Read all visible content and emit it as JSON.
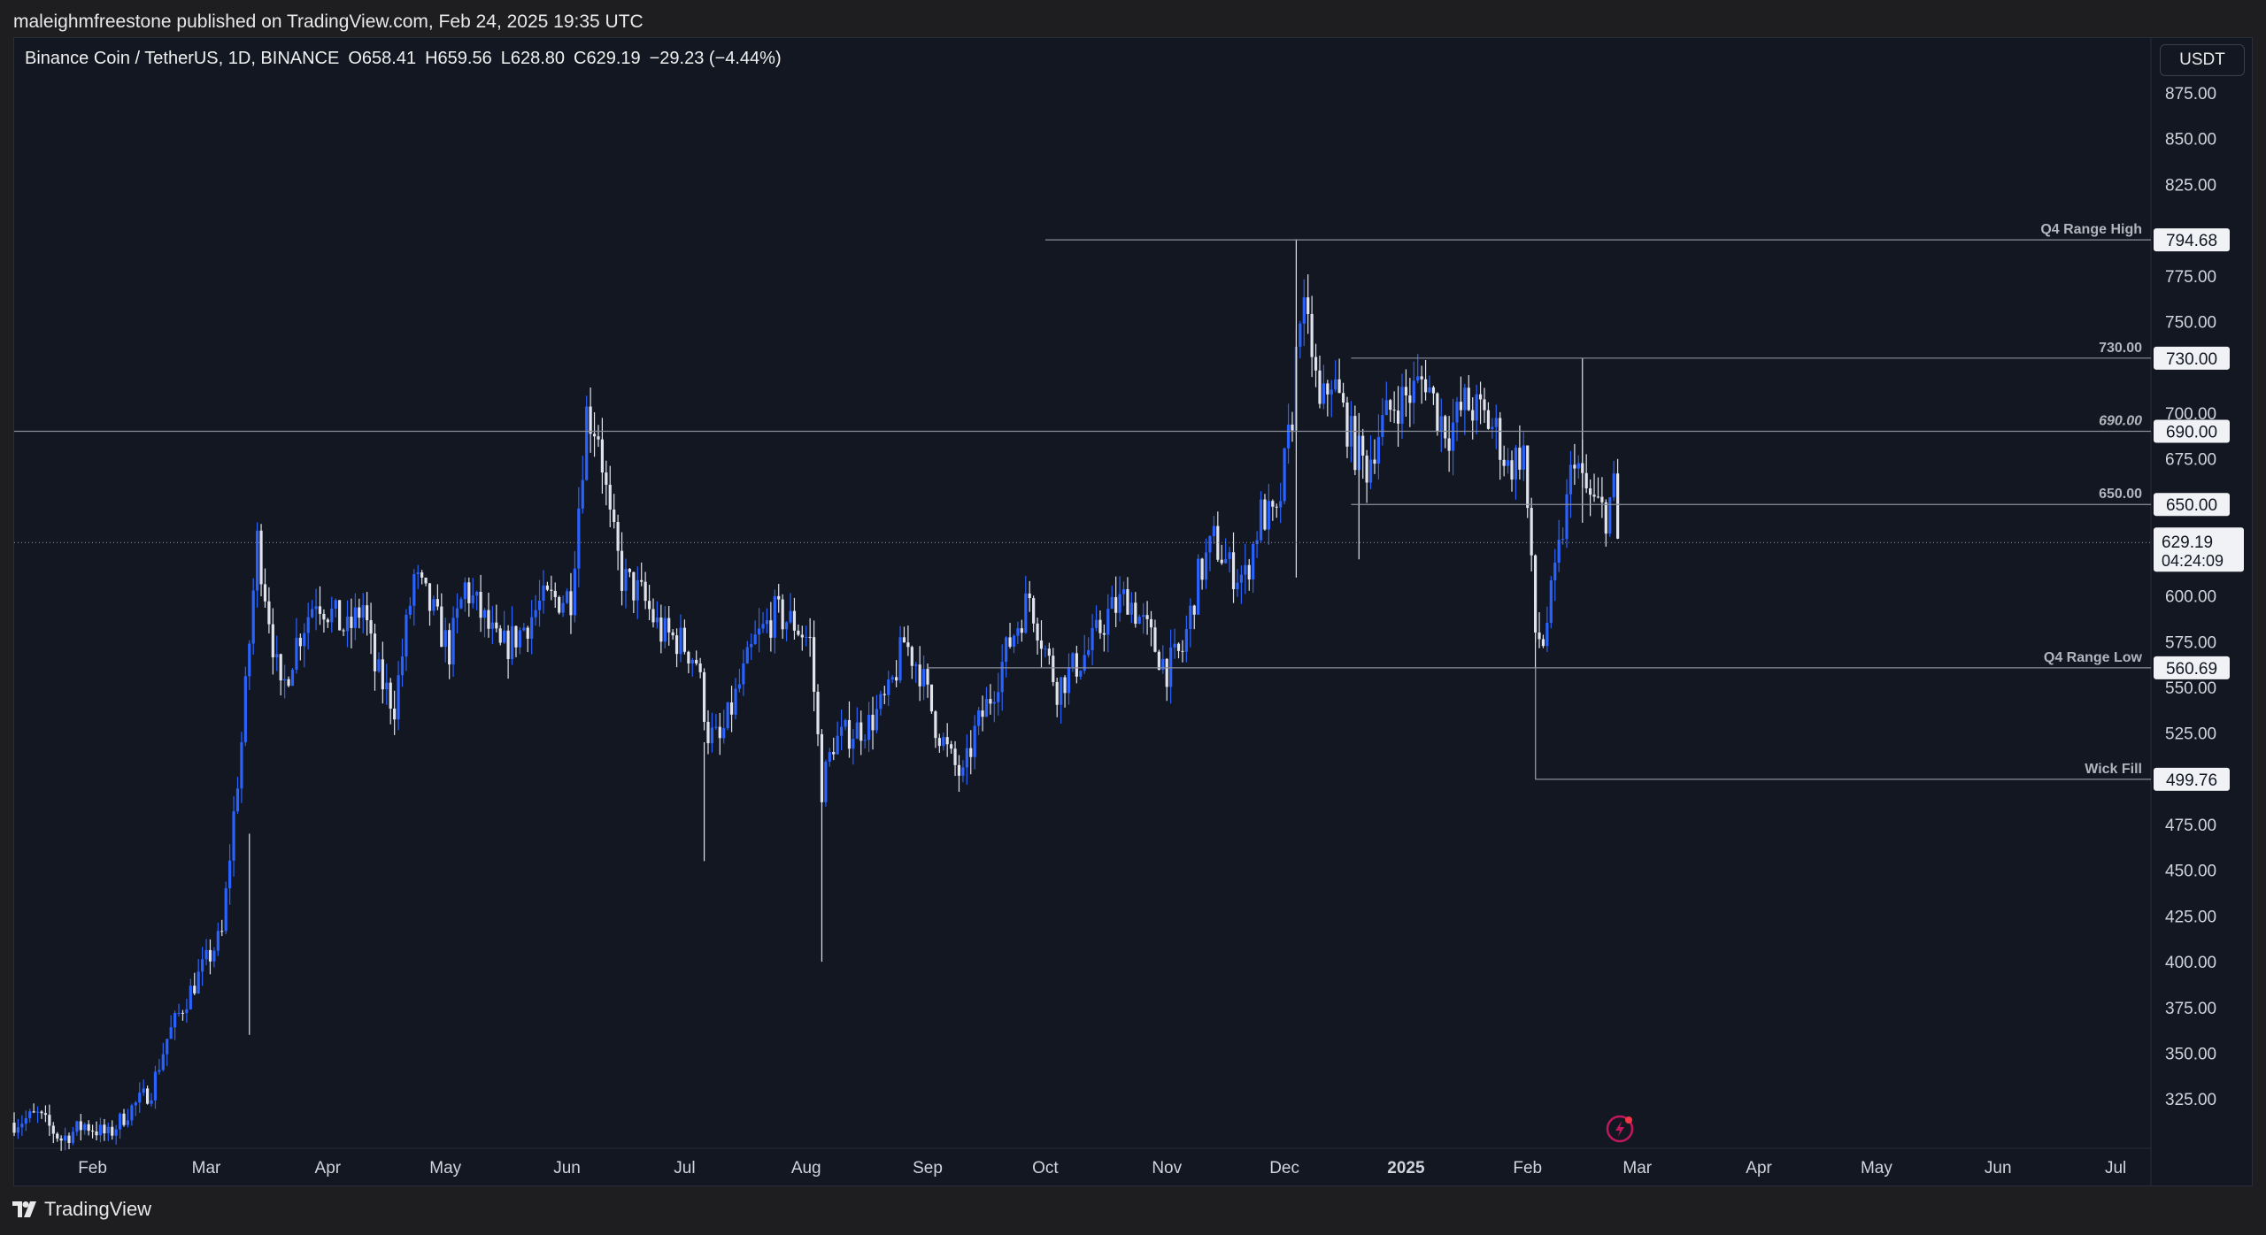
{
  "header": {
    "published_line": "maleighmfreestone published on TradingView.com, Feb 24, 2025 19:35 UTC"
  },
  "legend": {
    "symbol": "Binance Coin / TetherUS, 1D, BINANCE",
    "open": "O658.41",
    "high": "H659.56",
    "low": "L628.80",
    "close": "C629.19",
    "change": "−29.23 (−4.44%)"
  },
  "price_scale": {
    "currency": "USDT",
    "current_price": "629.19",
    "countdown": "04:24:09"
  },
  "footer": {
    "brand": "TradingView"
  },
  "colors": {
    "background": "#121722",
    "up_candle": "#2962ff",
    "down_candle": "#e0e3eb",
    "level_line": "#8a8f9c",
    "grid": "none"
  },
  "chart_data": {
    "type": "candlestick",
    "title": "",
    "grid": false,
    "y_axis": {
      "side": "right",
      "ticks": [
        325,
        350,
        375,
        400,
        425,
        450,
        475,
        525,
        550,
        575,
        600,
        675,
        700,
        750,
        775,
        825,
        850,
        875
      ],
      "tick_labels": [
        "325.00",
        "350.00",
        "375.00",
        "400.00",
        "425.00",
        "450.00",
        "475.00",
        "525.00",
        "550.00",
        "575.00",
        "600.00",
        "675.00",
        "700.00",
        "750.00",
        "775.00",
        "825.00",
        "850.00",
        "875.00"
      ],
      "ylim": [
        298,
        905
      ]
    },
    "x_axis": {
      "ticks": [
        {
          "date": "2024-02-01",
          "label": "Feb",
          "bold": false
        },
        {
          "date": "2024-03-01",
          "label": "Mar",
          "bold": false
        },
        {
          "date": "2024-04-01",
          "label": "Apr",
          "bold": false
        },
        {
          "date": "2024-05-01",
          "label": "May",
          "bold": false
        },
        {
          "date": "2024-06-01",
          "label": "Jun",
          "bold": false
        },
        {
          "date": "2024-07-01",
          "label": "Jul",
          "bold": false
        },
        {
          "date": "2024-08-01",
          "label": "Aug",
          "bold": false
        },
        {
          "date": "2024-09-01",
          "label": "Sep",
          "bold": false
        },
        {
          "date": "2024-10-01",
          "label": "Oct",
          "bold": false
        },
        {
          "date": "2024-11-01",
          "label": "Nov",
          "bold": false
        },
        {
          "date": "2024-12-01",
          "label": "Dec",
          "bold": false
        },
        {
          "date": "2025-01-01",
          "label": "2025",
          "bold": true
        },
        {
          "date": "2025-02-01",
          "label": "Feb",
          "bold": false
        },
        {
          "date": "2025-03-01",
          "label": "Mar",
          "bold": false
        },
        {
          "date": "2025-04-01",
          "label": "Apr",
          "bold": false
        },
        {
          "date": "2025-05-01",
          "label": "May",
          "bold": false
        },
        {
          "date": "2025-06-01",
          "label": "Jun",
          "bold": false
        },
        {
          "date": "2025-07-01",
          "label": "Jul",
          "bold": false
        }
      ],
      "xlim": [
        "2024-01-12",
        "2025-07-10"
      ]
    },
    "series": [
      {
        "kind": "close_path",
        "points": [
          [
            "2024-01-12",
            312
          ],
          [
            "2024-01-18",
            316
          ],
          [
            "2024-01-24",
            303
          ],
          [
            "2024-01-30",
            311
          ],
          [
            "2024-02-05",
            305
          ],
          [
            "2024-02-10",
            318
          ],
          [
            "2024-02-16",
            330
          ],
          [
            "2024-02-20",
            358
          ],
          [
            "2024-02-25",
            380
          ],
          [
            "2024-03-01",
            400
          ],
          [
            "2024-03-05",
            415
          ],
          [
            "2024-03-08",
            480
          ],
          [
            "2024-03-10",
            520
          ],
          [
            "2024-03-14",
            630
          ],
          [
            "2024-03-17",
            590
          ],
          [
            "2024-03-20",
            545
          ],
          [
            "2024-03-24",
            575
          ],
          [
            "2024-03-29",
            600
          ],
          [
            "2024-04-02",
            590
          ],
          [
            "2024-04-06",
            580
          ],
          [
            "2024-04-10",
            595
          ],
          [
            "2024-04-13",
            560
          ],
          [
            "2024-04-18",
            540
          ],
          [
            "2024-04-23",
            610
          ],
          [
            "2024-04-28",
            590
          ],
          [
            "2024-05-02",
            570
          ],
          [
            "2024-05-06",
            605
          ],
          [
            "2024-05-10",
            590
          ],
          [
            "2024-05-15",
            570
          ],
          [
            "2024-05-20",
            580
          ],
          [
            "2024-05-25",
            595
          ],
          [
            "2024-05-28",
            598
          ],
          [
            "2024-06-02",
            600
          ],
          [
            "2024-06-06",
            700
          ],
          [
            "2024-06-09",
            690
          ],
          [
            "2024-06-12",
            640
          ],
          [
            "2024-06-15",
            610
          ],
          [
            "2024-06-20",
            600
          ],
          [
            "2024-06-25",
            580
          ],
          [
            "2024-06-30",
            575
          ],
          [
            "2024-07-04",
            565
          ],
          [
            "2024-07-07",
            525
          ],
          [
            "2024-07-10",
            520
          ],
          [
            "2024-07-14",
            545
          ],
          [
            "2024-07-19",
            575
          ],
          [
            "2024-07-24",
            590
          ],
          [
            "2024-07-29",
            585
          ],
          [
            "2024-08-02",
            575
          ],
          [
            "2024-08-05",
            495
          ],
          [
            "2024-08-08",
            520
          ],
          [
            "2024-08-12",
            525
          ],
          [
            "2024-08-17",
            530
          ],
          [
            "2024-08-22",
            545
          ],
          [
            "2024-08-26",
            575
          ],
          [
            "2024-08-30",
            560
          ],
          [
            "2024-09-03",
            530
          ],
          [
            "2024-09-07",
            510
          ],
          [
            "2024-09-10",
            500
          ],
          [
            "2024-09-13",
            525
          ],
          [
            "2024-09-17",
            545
          ],
          [
            "2024-09-22",
            575
          ],
          [
            "2024-09-27",
            600
          ],
          [
            "2024-10-01",
            570
          ],
          [
            "2024-10-04",
            550
          ],
          [
            "2024-10-08",
            560
          ],
          [
            "2024-10-12",
            570
          ],
          [
            "2024-10-17",
            590
          ],
          [
            "2024-10-22",
            600
          ],
          [
            "2024-10-27",
            580
          ],
          [
            "2024-11-01",
            560
          ],
          [
            "2024-11-05",
            570
          ],
          [
            "2024-11-09",
            610
          ],
          [
            "2024-11-13",
            630
          ],
          [
            "2024-11-17",
            615
          ],
          [
            "2024-11-21",
            610
          ],
          [
            "2024-11-25",
            645
          ],
          [
            "2024-11-29",
            640
          ],
          [
            "2024-12-03",
            700
          ],
          [
            "2024-12-05",
            760
          ],
          [
            "2024-12-08",
            735
          ],
          [
            "2024-12-10",
            700
          ],
          [
            "2024-12-13",
            720
          ],
          [
            "2024-12-16",
            700
          ],
          [
            "2024-12-19",
            680
          ],
          [
            "2024-12-22",
            670
          ],
          [
            "2024-12-25",
            690
          ],
          [
            "2024-12-29",
            705
          ],
          [
            "2025-01-02",
            710
          ],
          [
            "2025-01-06",
            720
          ],
          [
            "2025-01-09",
            700
          ],
          [
            "2025-01-12",
            690
          ],
          [
            "2025-01-16",
            705
          ],
          [
            "2025-01-20",
            700
          ],
          [
            "2025-01-24",
            690
          ],
          [
            "2025-01-27",
            670
          ],
          [
            "2025-01-31",
            680
          ],
          [
            "2025-02-03",
            580
          ],
          [
            "2025-02-05",
            575
          ],
          [
            "2025-02-08",
            610
          ],
          [
            "2025-02-11",
            650
          ],
          [
            "2025-02-13",
            680
          ],
          [
            "2025-02-15",
            660
          ],
          [
            "2025-02-18",
            650
          ],
          [
            "2025-02-21",
            645
          ],
          [
            "2025-02-23",
            658.41
          ],
          [
            "2025-02-24",
            629.19
          ]
        ]
      }
    ],
    "levels": [
      {
        "label": "Q4 Range High",
        "price": 794.68,
        "start": "2024-10-01",
        "italic": false
      },
      {
        "label": "730.00",
        "price": 730.0,
        "start": "2024-12-18",
        "italic": false
      },
      {
        "label": "690.00",
        "price": 690.0,
        "start": "2024-01-12",
        "italic": true
      },
      {
        "label": "650.00",
        "price": 650.0,
        "start": "2024-12-18",
        "italic": false
      },
      {
        "label": "Q4 Range Low",
        "price": 560.69,
        "start": "2024-09-01",
        "italic": false
      },
      {
        "label": "Wick Fill",
        "price": 499.76,
        "start": "2025-02-03",
        "italic": false
      }
    ],
    "level_tags": [
      "794.68",
      "730.00",
      "690.00",
      "650.00",
      "560.69",
      "499.76"
    ],
    "last_price": 629.19
  }
}
